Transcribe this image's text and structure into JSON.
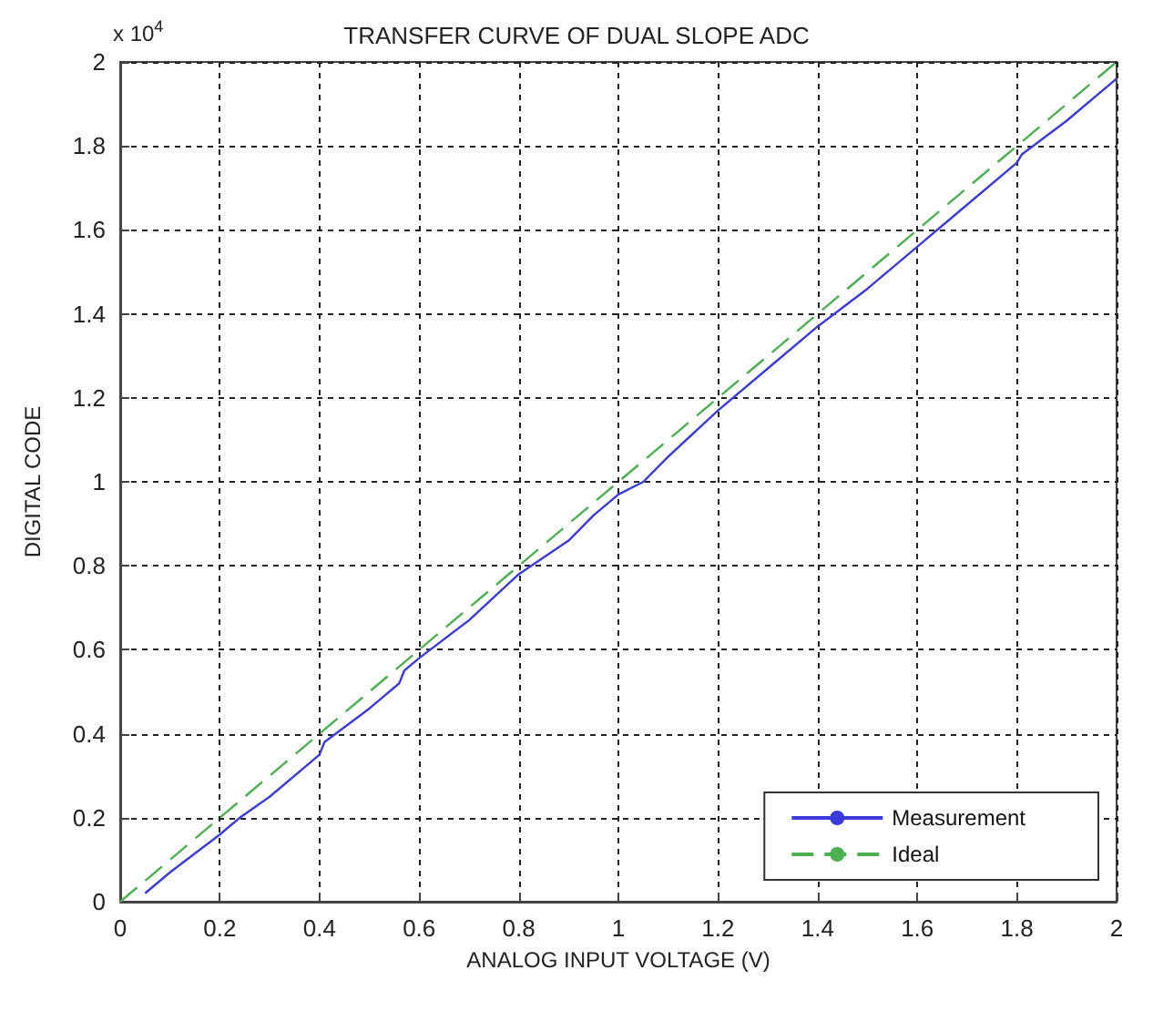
{
  "chart_data": {
    "type": "line",
    "title": "TRANSFER CURVE OF DUAL SLOPE ADC",
    "xlabel": "ANALOG INPUT VOLTAGE (V)",
    "ylabel": "DIGITAL CODE",
    "annotations": [
      "x 10$^{4}$"
    ],
    "series": [
      {
        "name": "Measurement",
        "color": "#3b3bdc",
        "line_style": "solid",
        "x": [
          0.05,
          0.1,
          0.2,
          0.24,
          0.3,
          0.38,
          0.4,
          0.41,
          0.5,
          0.56,
          0.57,
          0.6,
          0.7,
          0.8,
          0.9,
          0.95,
          1.0,
          1.05,
          1.1,
          1.2,
          1.3,
          1.4,
          1.5,
          1.6,
          1.7,
          1.8,
          1.81,
          1.9,
          2.0
        ],
        "values": [
          0.02,
          0.07,
          0.16,
          0.2,
          0.25,
          0.33,
          0.35,
          0.38,
          0.46,
          0.52,
          0.55,
          0.58,
          0.67,
          0.78,
          0.86,
          0.92,
          0.97,
          1.0,
          1.06,
          1.17,
          1.27,
          1.37,
          1.46,
          1.56,
          1.66,
          1.76,
          1.78,
          1.86,
          1.96
        ]
      },
      {
        "name": "Ideal",
        "color": "#4caf50",
        "line_style": "dashed",
        "x": [
          0,
          2
        ],
        "values": [
          0,
          2
        ]
      }
    ],
    "xlim": [
      0,
      2
    ],
    "xticks": [
      0,
      0.2,
      0.4,
      0.6,
      0.8,
      1,
      1.2,
      1.4,
      1.6,
      1.8,
      2
    ],
    "ylim": [
      0,
      2
    ],
    "yticks": [
      0,
      0.2,
      0.4,
      0.6,
      0.8,
      1,
      1.2,
      1.4,
      1.6,
      1.8,
      2
    ],
    "grid": true,
    "legend": "bottom right",
    "marker": "none"
  }
}
